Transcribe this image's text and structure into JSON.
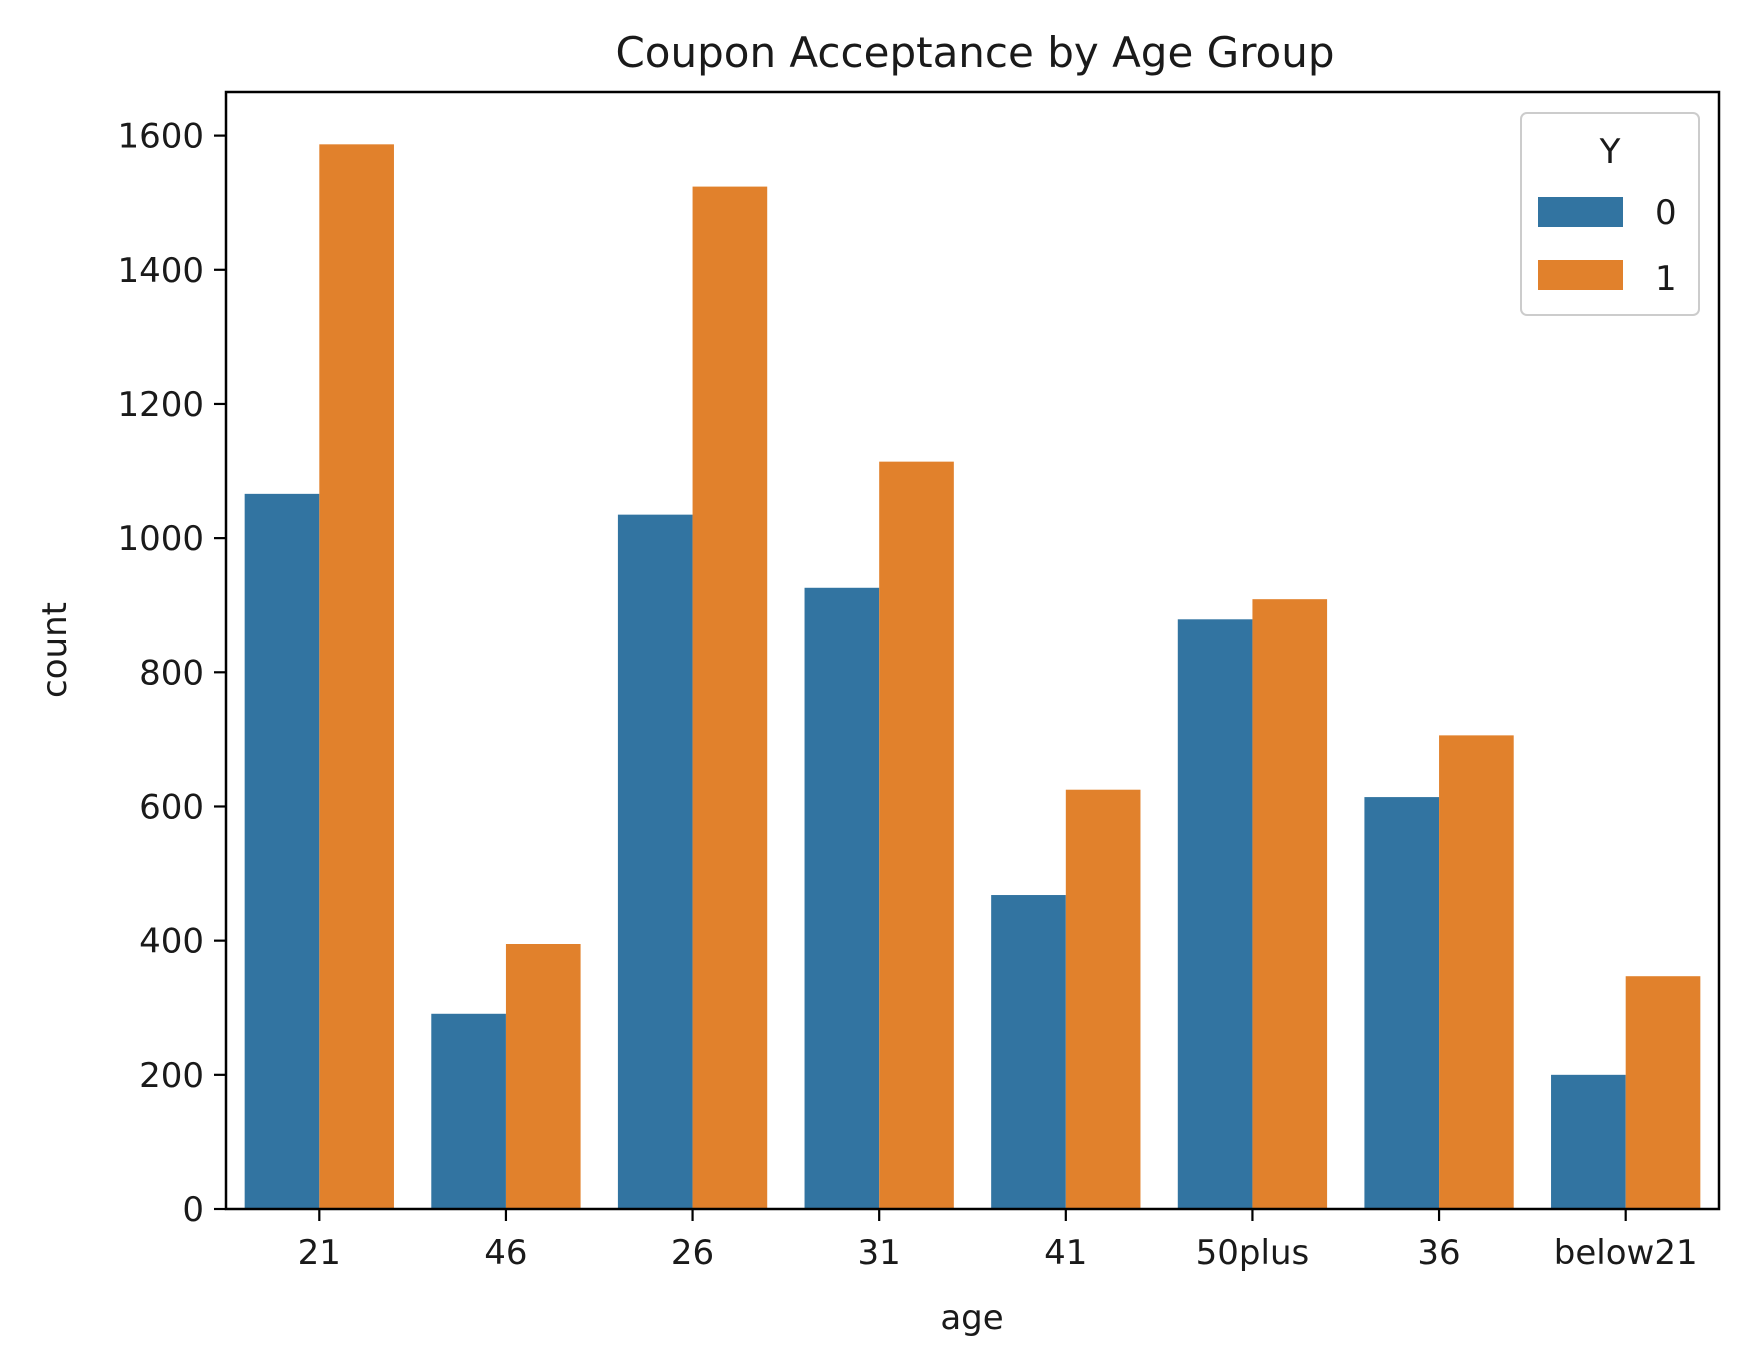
{
  "chart_data": {
    "type": "bar",
    "title": "Coupon Acceptance by Age Group",
    "xlabel": "age",
    "ylabel": "count",
    "categories": [
      "21",
      "46",
      "26",
      "31",
      "41",
      "50plus",
      "36",
      "below21"
    ],
    "series": [
      {
        "name": "0",
        "color": "#3274a1",
        "values": [
          1066,
          291,
          1035,
          926,
          468,
          879,
          614,
          200
        ]
      },
      {
        "name": "1",
        "color": "#e1812c",
        "values": [
          1587,
          395,
          1524,
          1114,
          625,
          909,
          706,
          347
        ]
      }
    ],
    "ylim": [
      0,
      1665
    ],
    "yticks": [
      0,
      200,
      400,
      600,
      800,
      1000,
      1200,
      1400,
      1600
    ],
    "grid": false,
    "legend": {
      "title": "Y",
      "placement": "top-right",
      "entries": [
        "0",
        "1"
      ]
    }
  }
}
